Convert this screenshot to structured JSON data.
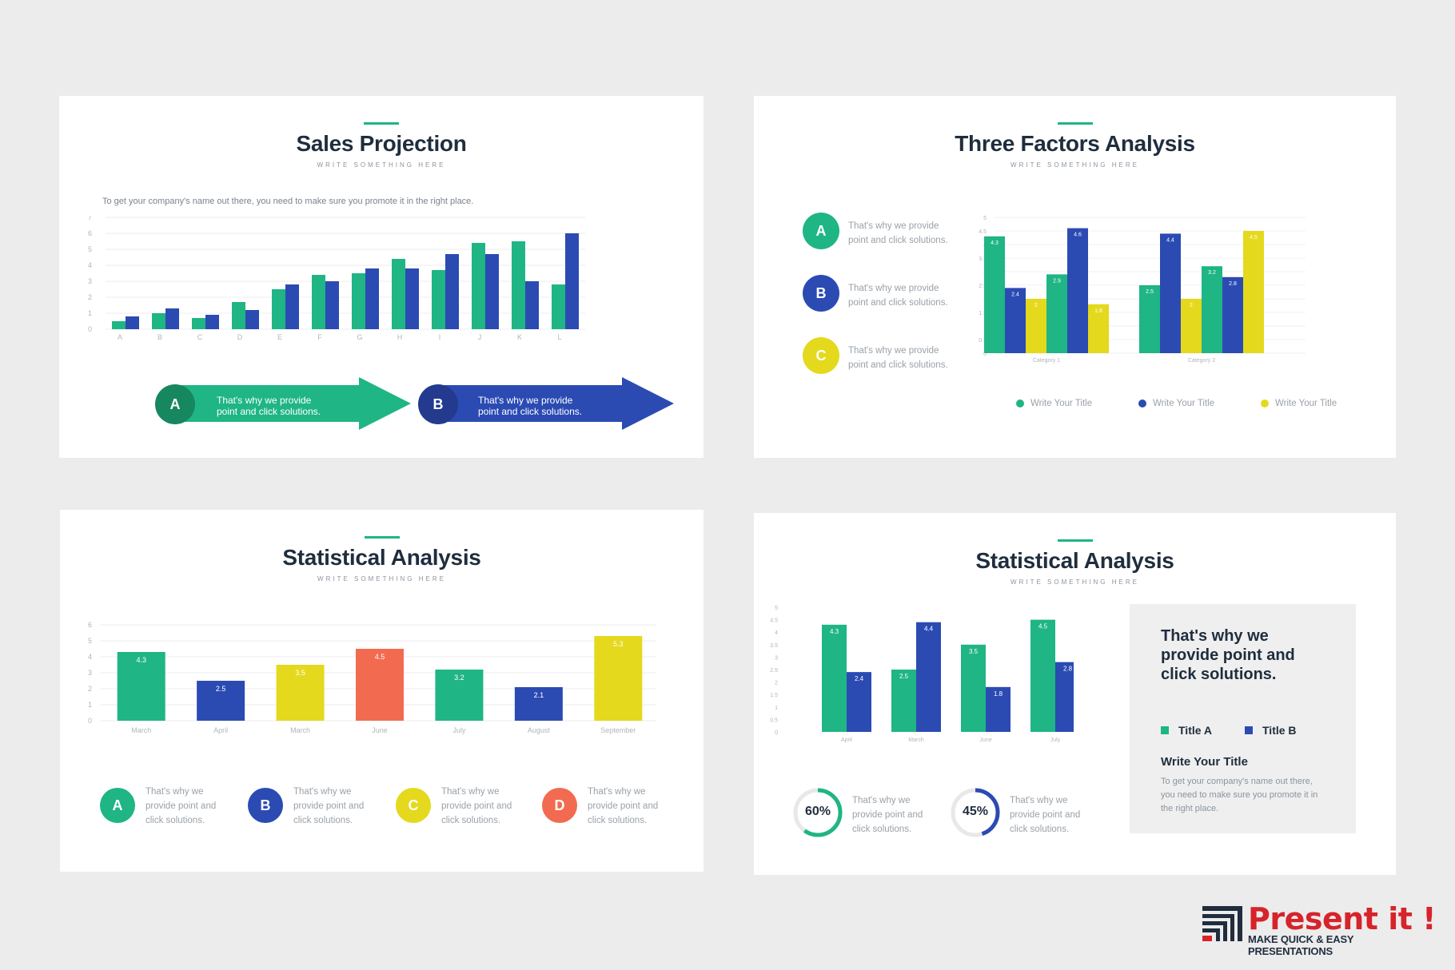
{
  "colors": {
    "green": "#1fb584",
    "blue": "#2b4bb3",
    "yellow": "#e4d91c",
    "coral": "#f26b50",
    "darkgreen": "#17875f",
    "darkblue": "#233a8f",
    "bg": "#ececec"
  },
  "slide1": {
    "title": "Sales Projection",
    "subtitle": "WRITE SOMETHING HERE",
    "intro": "To get your company's name out there, you need to make sure you promote it in the right place.",
    "arrows": [
      {
        "letter": "A",
        "line1": "That's why we provide",
        "line2": "point and click solutions."
      },
      {
        "letter": "B",
        "line1": "That's why we provide",
        "line2": "point and click solutions."
      }
    ]
  },
  "slide2": {
    "title": "Three Factors Analysis",
    "subtitle": "WRITE SOMETHING HERE",
    "items": [
      {
        "letter": "A",
        "line1": "That's why we provide",
        "line2": "point and click solutions."
      },
      {
        "letter": "B",
        "line1": "That's why we provide",
        "line2": "point and click solutions."
      },
      {
        "letter": "C",
        "line1": "That's why we provide",
        "line2": "point and click solutions."
      }
    ],
    "legend": [
      "Write Your Title",
      "Write Your Title",
      "Write Your Title"
    ]
  },
  "slide3": {
    "title": "Statistical Analysis",
    "subtitle": "WRITE SOMETHING HERE",
    "items": [
      {
        "letter": "A",
        "lines": [
          "That's why we",
          "provide point and",
          "click solutions."
        ]
      },
      {
        "letter": "B",
        "lines": [
          "That's why we",
          "provide point and",
          "click solutions."
        ]
      },
      {
        "letter": "C",
        "lines": [
          "That's why we",
          "provide point and",
          "click solutions."
        ]
      },
      {
        "letter": "D",
        "lines": [
          "That's why we",
          "provide point and",
          "click solutions."
        ]
      }
    ]
  },
  "slide4": {
    "title": "Statistical Analysis",
    "subtitle": "WRITE SOMETHING HERE",
    "panel": {
      "heading": "That's why we provide point and click solutions.",
      "legend": [
        "Title A",
        "Title B"
      ],
      "subheading": "Write Your Title",
      "body": "To get your company's name out there, you need to make sure you promote it in the right place."
    },
    "donuts": [
      {
        "value": 60,
        "label": "60%",
        "lines": [
          "That's why we",
          "provide point and",
          "click solutions."
        ]
      },
      {
        "value": 45,
        "label": "45%",
        "lines": [
          "That's why we",
          "provide point and",
          "click solutions."
        ]
      }
    ]
  },
  "brand": {
    "name": "Present it !",
    "tagline": "MAKE QUICK & EASY PRESENTATIONS"
  },
  "chart_data": [
    {
      "type": "bar",
      "categories": [
        "A",
        "B",
        "C",
        "D",
        "E",
        "F",
        "G",
        "H",
        "I",
        "J",
        "K",
        "L"
      ],
      "series": [
        {
          "values": [
            0.5,
            1,
            0.7,
            1.7,
            2.5,
            3.4,
            3.5,
            4.4,
            3.7,
            5.4,
            5.5,
            2.8
          ]
        },
        {
          "values": [
            0.8,
            1.3,
            0.9,
            1.2,
            2.8,
            3.0,
            3.8,
            3.8,
            4.7,
            4.7,
            3.0,
            6.0
          ]
        }
      ],
      "ylim": [
        0,
        7
      ],
      "yticks": [
        0,
        1,
        2,
        3,
        4,
        5,
        6,
        7
      ],
      "grid": true
    },
    {
      "type": "bar",
      "categories": [
        "Category 1",
        "Category 2"
      ],
      "series": [
        {
          "name": "Write Your Title",
          "values": [
            4.3,
            2.5
          ]
        },
        {
          "name": "Write Your Title",
          "values": [
            2.4,
            4.4
          ]
        },
        {
          "name": "Write Your Title",
          "values": [
            2.0,
            2.0
          ]
        },
        {
          "name": "Write Your Title",
          "values": [
            2.9,
            3.2
          ]
        },
        {
          "name": "Write Your Title",
          "values": [
            4.6,
            2.8
          ]
        },
        {
          "name": "Write Your Title",
          "values": [
            1.8,
            4.5
          ]
        }
      ],
      "labels": [
        "4.3",
        "2.4",
        "2",
        "2.9",
        "4.6",
        "1.8",
        "2.5",
        "4.4",
        "2",
        "3.2",
        "2.8",
        "4.5"
      ],
      "ylim": [
        0,
        5
      ],
      "yticks": [
        "0",
        "0.5",
        "1",
        "1.5",
        "2",
        "2.5",
        "3",
        "3.5",
        "4",
        "4.5",
        "5"
      ],
      "legend_position": "bottom",
      "grid": true
    },
    {
      "type": "bar",
      "categories": [
        "March",
        "April",
        "March",
        "June",
        "July",
        "August",
        "September"
      ],
      "values": [
        4.3,
        2.5,
        3.5,
        4.5,
        3.2,
        2.1,
        5.3
      ],
      "labels": [
        "4.3",
        "2.5",
        "3.5",
        "4.5",
        "3.2",
        "2.1",
        "5.3"
      ],
      "ylim": [
        0,
        6
      ],
      "yticks": [
        0,
        1,
        2,
        3,
        4,
        5,
        6
      ],
      "grid": true
    },
    {
      "type": "bar",
      "categories": [
        "April",
        "March",
        "June",
        "July"
      ],
      "series": [
        {
          "name": "Title A",
          "values": [
            4.3,
            2.5,
            3.5,
            4.5
          ]
        },
        {
          "name": "Title B",
          "values": [
            2.4,
            4.4,
            1.8,
            2.8
          ]
        }
      ],
      "ylim": [
        0,
        5
      ],
      "yticks": [
        "0",
        "0.5",
        "1",
        "1.5",
        "2",
        "2.5",
        "3",
        "3.5",
        "4",
        "4.5",
        "5"
      ],
      "legend_position": "right",
      "grid": true
    }
  ]
}
